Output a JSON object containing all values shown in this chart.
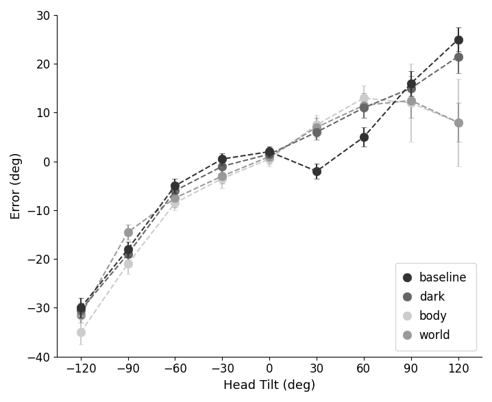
{
  "x": [
    -120,
    -90,
    -60,
    -30,
    0,
    30,
    60,
    90,
    120
  ],
  "series": {
    "baseline": {
      "y": [
        -30.0,
        -18.0,
        -5.0,
        0.5,
        2.0,
        -2.0,
        5.0,
        16.0,
        25.0
      ],
      "yerr": [
        2.0,
        1.5,
        1.5,
        1.2,
        1.0,
        1.5,
        2.0,
        2.5,
        2.5
      ],
      "color": "#333333"
    },
    "dark": {
      "y": [
        -30.5,
        -19.0,
        -6.0,
        -1.0,
        1.5,
        6.0,
        11.0,
        15.0,
        21.5
      ],
      "yerr": [
        1.5,
        1.5,
        1.5,
        1.5,
        1.0,
        1.5,
        2.0,
        2.5,
        3.5
      ],
      "color": "#666666"
    },
    "body": {
      "y": [
        -35.0,
        -21.0,
        -8.5,
        -3.5,
        0.5,
        7.5,
        13.0,
        12.0,
        8.0
      ],
      "yerr": [
        2.5,
        2.0,
        1.5,
        2.0,
        1.5,
        2.0,
        2.5,
        8.0,
        9.0
      ],
      "color": "#cccccc"
    },
    "world": {
      "y": [
        -31.5,
        -14.5,
        -7.5,
        -3.0,
        1.0,
        7.0,
        11.5,
        12.5,
        8.0
      ],
      "yerr": [
        1.5,
        1.5,
        2.0,
        1.5,
        1.5,
        2.0,
        2.5,
        3.5,
        4.0
      ],
      "color": "#999999"
    }
  },
  "series_order": [
    "body",
    "world",
    "dark",
    "baseline"
  ],
  "legend_order": [
    "baseline",
    "dark",
    "body",
    "world"
  ],
  "xlabel": "Head Tilt (deg)",
  "ylabel": "Error (deg)",
  "xlim": [
    -135,
    135
  ],
  "ylim": [
    -40,
    30
  ],
  "xticks": [
    -120,
    -90,
    -60,
    -30,
    0,
    30,
    60,
    90,
    120
  ],
  "yticks": [
    -40,
    -30,
    -20,
    -10,
    0,
    10,
    20,
    30
  ],
  "marker_size": 9,
  "linewidth": 1.5,
  "capsize": 3,
  "background_color": "#ffffff",
  "legend_fontsize": 12,
  "axis_fontsize": 13,
  "tick_fontsize": 12
}
